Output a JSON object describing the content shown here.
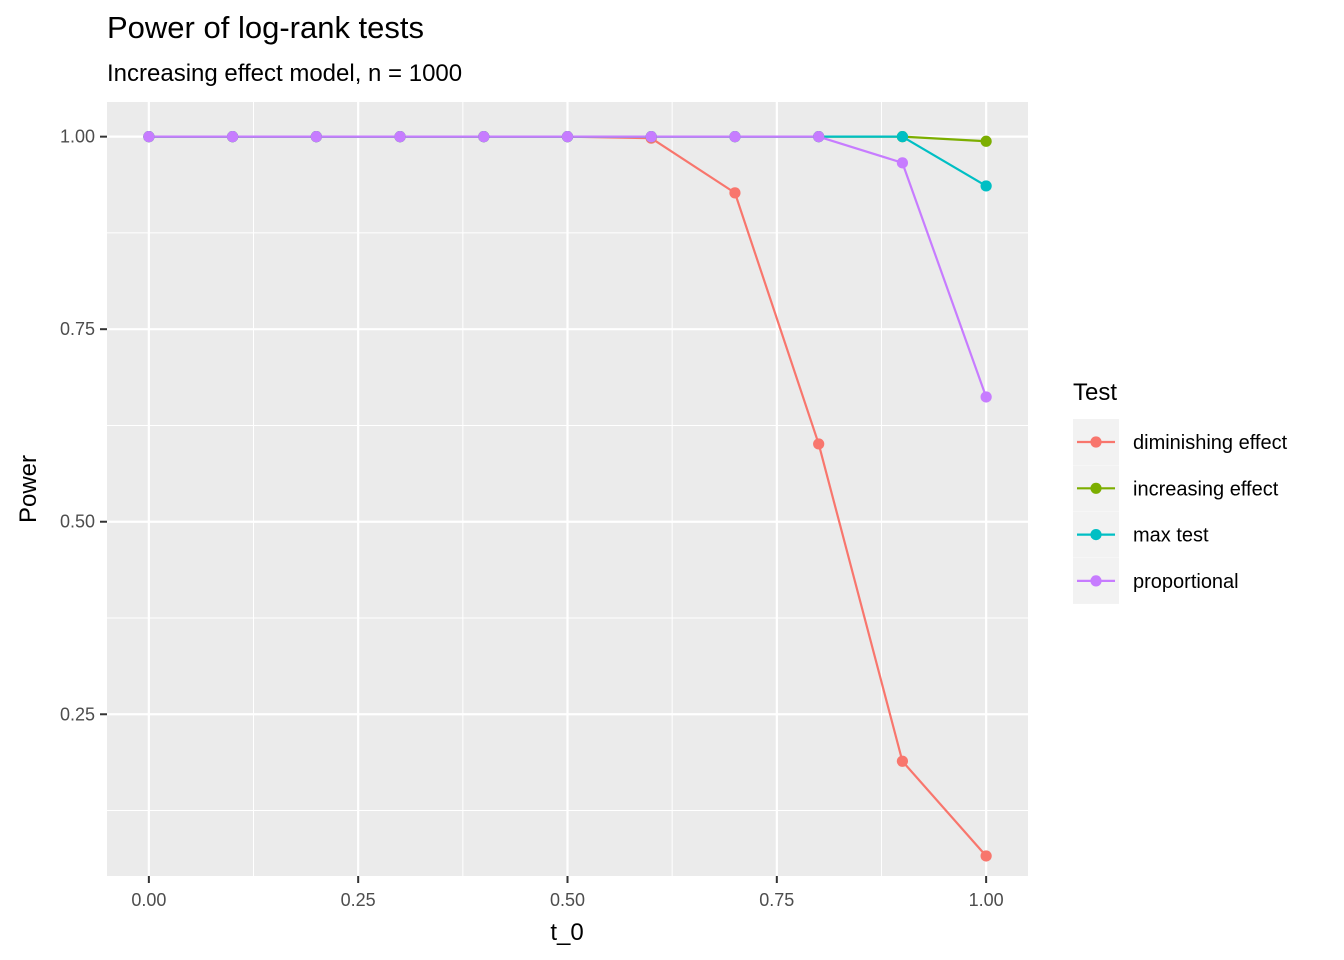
{
  "chart_data": {
    "type": "line",
    "title": "Power of log-rank tests",
    "subtitle": "Increasing effect model, n = 1000",
    "xlabel": "t_0",
    "ylabel": "Power",
    "xlim": [
      -0.05,
      1.05
    ],
    "ylim": [
      0.04,
      1.045
    ],
    "x_ticks": [
      0.0,
      0.25,
      0.5,
      0.75,
      1.0
    ],
    "x_tick_labels": [
      "0.00",
      "0.25",
      "0.50",
      "0.75",
      "1.00"
    ],
    "y_ticks": [
      0.25,
      0.5,
      0.75,
      1.0
    ],
    "y_tick_labels": [
      "0.25",
      "0.50",
      "0.75",
      "1.00"
    ],
    "grid": true,
    "legend_title": "Test",
    "legend_position": "right",
    "x": [
      0.0,
      0.1,
      0.2,
      0.3,
      0.4,
      0.5,
      0.6,
      0.7,
      0.8,
      0.9,
      1.0
    ],
    "series": [
      {
        "name": "diminishing effect",
        "color": "#F8766D",
        "values": [
          1.0,
          1.0,
          1.0,
          1.0,
          1.0,
          1.0,
          0.998,
          0.927,
          0.601,
          0.189,
          0.066
        ]
      },
      {
        "name": "increasing effect",
        "color": "#7CAE00",
        "values": [
          1.0,
          1.0,
          1.0,
          1.0,
          1.0,
          1.0,
          1.0,
          1.0,
          1.0,
          1.0,
          0.994
        ]
      },
      {
        "name": "max test",
        "color": "#00BFC4",
        "values": [
          1.0,
          1.0,
          1.0,
          1.0,
          1.0,
          1.0,
          1.0,
          1.0,
          1.0,
          1.0,
          0.936
        ]
      },
      {
        "name": "proportional",
        "color": "#C77CFF",
        "values": [
          1.0,
          1.0,
          1.0,
          1.0,
          1.0,
          1.0,
          1.0,
          1.0,
          1.0,
          0.966,
          0.662
        ]
      }
    ]
  }
}
